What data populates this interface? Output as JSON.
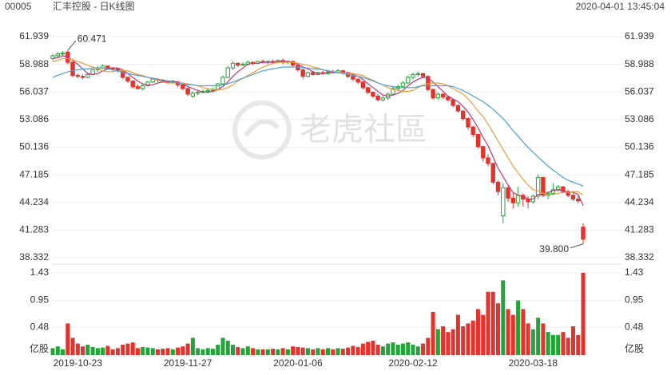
{
  "header": {
    "code": "00005",
    "name": "汇丰控股 - 日K线图",
    "time": "2020-04-01 13:45:04"
  },
  "watermark": "老虎社區",
  "chart_data": {
    "type": "candlestick",
    "categories": [
      null,
      null,
      null,
      null,
      null,
      "2019-10-23",
      null,
      null,
      null,
      null,
      null,
      null,
      null,
      null,
      null,
      null,
      null,
      null,
      null,
      null,
      null,
      null,
      null,
      null,
      null,
      null,
      null,
      "2019-11-27",
      null,
      null,
      null,
      null,
      null,
      null,
      null,
      null,
      null,
      null,
      null,
      null,
      null,
      null,
      null,
      null,
      null,
      null,
      null,
      null,
      null,
      "2020-01-06",
      null,
      null,
      null,
      null,
      null,
      null,
      null,
      null,
      null,
      null,
      null,
      null,
      null,
      null,
      null,
      null,
      null,
      null,
      null,
      null,
      null,
      null,
      "2020-02-12",
      null,
      null,
      null,
      null,
      null,
      null,
      null,
      null,
      null,
      null,
      null,
      null,
      null,
      null,
      null,
      null,
      null,
      null,
      null,
      null,
      null,
      null,
      null,
      "2020-03-18",
      null,
      null,
      null,
      null,
      null,
      null,
      null,
      null,
      null,
      null
    ],
    "open": [
      59.6,
      59.9,
      60.1,
      60.3,
      59.2,
      57.8,
      57.7,
      57.6,
      57.9,
      58.4,
      58.6,
      58.8,
      58.6,
      58.5,
      58.3,
      57.6,
      57.2,
      56.6,
      56.4,
      56.7,
      57.1,
      57.4,
      57.3,
      57.2,
      57.0,
      57.1,
      56.8,
      56.4,
      55.6,
      55.9,
      56.0,
      56.1,
      56.2,
      56.3,
      56.9,
      57.6,
      58.6,
      59.1,
      58.9,
      59.0,
      59.2,
      59.1,
      59.3,
      59.2,
      59.3,
      59.2,
      59.4,
      59.2,
      59.3,
      58.9,
      58.4,
      57.7,
      58.1,
      57.9,
      58.1,
      58.0,
      58.2,
      58.1,
      58.3,
      58.1,
      57.7,
      57.4,
      57.1,
      56.5,
      56.0,
      55.6,
      55.2,
      55.4,
      55.8,
      56.4,
      56.6,
      57.0,
      57.6,
      57.9,
      58.0,
      57.7,
      56.3,
      55.4,
      55.8,
      55.5,
      55.2,
      54.6,
      54.0,
      53.2,
      52.3,
      51.5,
      50.2,
      49.0,
      48.4,
      46.4,
      42.8,
      45.8,
      44.7,
      44.2,
      45.0,
      44.6,
      44.3,
      44.9,
      46.9,
      45.0,
      45.2,
      45.6,
      45.9,
      45.4,
      45.0,
      44.6,
      41.6
    ],
    "high": [
      60.1,
      60.3,
      60.4,
      60.471,
      59.3,
      58.0,
      57.9,
      58.1,
      58.5,
      58.8,
      59.0,
      58.9,
      58.7,
      58.6,
      58.4,
      57.7,
      57.3,
      56.8,
      56.9,
      57.2,
      57.6,
      57.5,
      57.4,
      57.3,
      57.3,
      57.2,
      56.9,
      56.5,
      56.1,
      56.2,
      56.3,
      56.4,
      56.5,
      57.0,
      57.8,
      58.8,
      59.3,
      59.2,
      59.2,
      59.4,
      59.3,
      59.4,
      59.5,
      59.4,
      59.5,
      59.5,
      59.6,
      59.4,
      59.4,
      59.0,
      58.5,
      58.2,
      58.3,
      58.2,
      58.3,
      58.4,
      58.4,
      58.5,
      58.4,
      58.2,
      57.8,
      57.5,
      57.2,
      56.6,
      56.1,
      55.8,
      55.6,
      56.0,
      56.6,
      56.8,
      57.2,
      57.8,
      58.1,
      58.2,
      58.1,
      57.8,
      56.4,
      56.0,
      55.9,
      55.6,
      55.3,
      54.7,
      54.1,
      53.3,
      52.4,
      51.6,
      50.3,
      49.4,
      48.5,
      46.6,
      46.3,
      46.0,
      45.3,
      45.9,
      45.2,
      44.9,
      45.1,
      47.2,
      47.0,
      45.4,
      46.3,
      46.1,
      46.0,
      45.6,
      45.2,
      45.0,
      42.0
    ],
    "low": [
      59.4,
      59.7,
      59.9,
      59.0,
      57.6,
      57.5,
      57.4,
      57.5,
      57.8,
      58.2,
      58.5,
      58.4,
      58.3,
      58.1,
      57.4,
      57.0,
      56.4,
      56.3,
      56.2,
      56.6,
      57.0,
      57.1,
      57.0,
      56.9,
      56.9,
      56.6,
      56.2,
      55.6,
      55.4,
      55.7,
      55.9,
      55.9,
      56.0,
      56.2,
      56.8,
      57.5,
      58.4,
      58.7,
      58.8,
      58.9,
      58.9,
      59.0,
      59.1,
      59.0,
      59.0,
      59.1,
      59.0,
      59.0,
      58.7,
      58.2,
      57.4,
      57.6,
      57.8,
      57.8,
      57.9,
      57.9,
      58.0,
      58.0,
      57.9,
      57.5,
      57.2,
      56.9,
      56.3,
      55.8,
      55.4,
      55.0,
      55.0,
      55.2,
      55.7,
      56.2,
      56.5,
      56.9,
      57.4,
      57.7,
      57.5,
      56.1,
      55.2,
      55.2,
      55.3,
      55.0,
      54.4,
      53.8,
      53.0,
      52.0,
      51.2,
      50.0,
      48.6,
      48.1,
      46.2,
      45.0,
      42.0,
      44.3,
      43.6,
      43.8,
      43.8,
      43.6,
      44.1,
      44.6,
      44.8,
      44.6,
      45.0,
      45.4,
      45.2,
      44.8,
      44.4,
      44.2,
      39.8
    ],
    "close": [
      59.9,
      60.1,
      60.2,
      59.2,
      57.8,
      57.7,
      57.6,
      57.9,
      58.4,
      58.6,
      58.8,
      58.6,
      58.5,
      58.3,
      57.6,
      57.2,
      56.6,
      56.4,
      56.7,
      57.1,
      57.4,
      57.3,
      57.2,
      57.0,
      57.1,
      56.8,
      56.4,
      55.8,
      55.9,
      56.0,
      56.1,
      56.2,
      56.3,
      56.9,
      57.6,
      58.6,
      59.1,
      58.9,
      59.0,
      59.2,
      59.1,
      59.3,
      59.2,
      59.3,
      59.2,
      59.4,
      59.2,
      59.3,
      58.9,
      58.4,
      57.7,
      58.1,
      57.9,
      58.1,
      58.0,
      58.2,
      58.1,
      58.3,
      58.1,
      57.7,
      57.4,
      57.1,
      56.5,
      56.0,
      55.6,
      55.2,
      55.4,
      55.8,
      56.4,
      56.6,
      57.0,
      57.6,
      57.9,
      58.0,
      57.7,
      56.3,
      55.4,
      55.8,
      55.5,
      55.2,
      54.6,
      54.0,
      53.2,
      52.3,
      51.5,
      50.2,
      49.0,
      48.4,
      46.4,
      45.4,
      45.8,
      44.7,
      44.2,
      45.0,
      44.6,
      44.3,
      44.9,
      46.9,
      45.0,
      45.2,
      45.6,
      45.9,
      45.4,
      45.0,
      44.6,
      44.4,
      40.3
    ],
    "up_color": "#23a33a",
    "down_color": "#e6322c",
    "ma_lines": [
      {
        "color": "#c2367a",
        "values": [
          59.6,
          59.7,
          59.9,
          59.8,
          59.4,
          59.0,
          58.5,
          58.0,
          57.9,
          58.0,
          58.3,
          58.5,
          58.6,
          58.6,
          58.4,
          58.0,
          57.6,
          57.2,
          56.9,
          56.8,
          56.8,
          57.0,
          57.1,
          57.2,
          57.2,
          57.1,
          56.9,
          56.6,
          56.4,
          56.2,
          56.0,
          56.0,
          56.1,
          56.3,
          56.6,
          57.1,
          57.7,
          58.2,
          58.6,
          59.0,
          59.1,
          59.1,
          59.2,
          59.2,
          59.2,
          59.3,
          59.3,
          59.3,
          59.2,
          59.0,
          58.7,
          58.5,
          58.2,
          58.0,
          58.0,
          58.1,
          58.1,
          58.1,
          58.1,
          58.1,
          57.9,
          57.7,
          57.4,
          56.9,
          56.5,
          56.1,
          55.7,
          55.6,
          55.7,
          55.9,
          56.2,
          56.7,
          57.1,
          57.4,
          57.6,
          57.5,
          57.1,
          56.6,
          56.1,
          55.6,
          55.3,
          55.0,
          54.5,
          53.9,
          53.1,
          52.2,
          51.2,
          50.3,
          49.1,
          47.9,
          47.0,
          46.1,
          45.3,
          45.0,
          44.9,
          44.6,
          44.6,
          45.1,
          45.1,
          45.3,
          45.5,
          45.6,
          45.4,
          45.4,
          45.3,
          45.1,
          43.9
        ]
      },
      {
        "color": "#f09a3a",
        "values": [
          59.3,
          59.4,
          59.6,
          59.6,
          59.5,
          59.3,
          59.1,
          58.9,
          58.7,
          58.5,
          58.3,
          58.2,
          58.2,
          58.3,
          58.3,
          58.3,
          58.1,
          57.9,
          57.8,
          57.6,
          57.4,
          57.3,
          57.1,
          57.0,
          57.0,
          57.0,
          57.0,
          56.9,
          56.8,
          56.7,
          56.5,
          56.4,
          56.3,
          56.3,
          56.3,
          56.5,
          56.8,
          57.2,
          57.5,
          57.8,
          58.1,
          58.4,
          58.7,
          58.9,
          59.1,
          59.2,
          59.2,
          59.2,
          59.2,
          59.1,
          59.0,
          58.9,
          58.7,
          58.6,
          58.4,
          58.3,
          58.2,
          58.1,
          58.1,
          58.0,
          58.0,
          57.9,
          57.8,
          57.5,
          57.3,
          57.0,
          56.8,
          56.5,
          56.3,
          56.2,
          56.1,
          56.1,
          56.2,
          56.5,
          56.8,
          56.9,
          57.0,
          57.0,
          56.9,
          56.7,
          56.4,
          56.1,
          55.8,
          55.3,
          54.7,
          54.0,
          53.4,
          52.6,
          51.7,
          50.8,
          49.9,
          49.0,
          48.1,
          47.4,
          46.7,
          46.1,
          45.6,
          45.5,
          45.2,
          45.1,
          45.1,
          45.2,
          45.3,
          45.3,
          45.4,
          45.4,
          45.0
        ]
      },
      {
        "color": "#4a9fd8",
        "values": [
          57.6,
          57.8,
          58.0,
          58.2,
          58.3,
          58.4,
          58.5,
          58.5,
          58.6,
          58.6,
          58.6,
          58.5,
          58.4,
          58.3,
          58.1,
          58.0,
          57.9,
          57.8,
          57.7,
          57.6,
          57.5,
          57.4,
          57.3,
          57.2,
          57.1,
          57.0,
          56.9,
          56.8,
          56.8,
          56.7,
          56.7,
          56.7,
          56.7,
          56.7,
          56.8,
          56.9,
          57.1,
          57.3,
          57.5,
          57.7,
          57.9,
          58.1,
          58.3,
          58.4,
          58.5,
          58.6,
          58.7,
          58.7,
          58.7,
          58.7,
          58.6,
          58.6,
          58.5,
          58.5,
          58.4,
          58.3,
          58.2,
          58.1,
          58.0,
          57.9,
          57.8,
          57.7,
          57.6,
          57.4,
          57.2,
          57.0,
          56.8,
          56.7,
          56.6,
          56.5,
          56.5,
          56.5,
          56.5,
          56.6,
          56.7,
          56.7,
          56.7,
          56.7,
          56.7,
          56.7,
          56.6,
          56.4,
          56.2,
          55.9,
          55.6,
          55.3,
          55.0,
          54.6,
          54.2,
          53.7,
          53.2,
          52.6,
          51.9,
          51.3,
          50.7,
          50.1,
          49.6,
          49.1,
          48.6,
          48.1,
          47.7,
          47.3,
          46.9,
          46.6,
          46.4,
          46.2,
          46.0
        ]
      }
    ],
    "ylim": [
      38.332,
      61.939
    ],
    "yticks": [
      38.332,
      41.283,
      44.234,
      47.185,
      50.136,
      53.086,
      56.037,
      58.988,
      61.939
    ],
    "grid": true,
    "annotations": [
      "60.471",
      "39.800"
    ],
    "volume": {
      "unit": "亿股",
      "ylim": [
        0,
        1.43
      ],
      "yticks": [
        0.48,
        0.95,
        1.43
      ],
      "values": [
        0.12,
        0.15,
        0.1,
        0.55,
        0.3,
        0.2,
        0.15,
        0.18,
        0.14,
        0.12,
        0.13,
        0.16,
        0.1,
        0.12,
        0.18,
        0.2,
        0.22,
        0.12,
        0.14,
        0.13,
        0.12,
        0.1,
        0.11,
        0.12,
        0.1,
        0.13,
        0.15,
        0.2,
        0.3,
        0.12,
        0.1,
        0.12,
        0.11,
        0.18,
        0.3,
        0.25,
        0.18,
        0.14,
        0.12,
        0.15,
        0.12,
        0.1,
        0.1,
        0.1,
        0.11,
        0.1,
        0.12,
        0.1,
        0.15,
        0.14,
        0.13,
        0.12,
        0.1,
        0.12,
        0.1,
        0.12,
        0.1,
        0.12,
        0.11,
        0.13,
        0.16,
        0.14,
        0.2,
        0.23,
        0.25,
        0.18,
        0.15,
        0.2,
        0.22,
        0.18,
        0.2,
        0.22,
        0.18,
        0.15,
        0.2,
        0.3,
        0.75,
        0.45,
        0.5,
        0.4,
        0.45,
        0.7,
        0.5,
        0.55,
        0.6,
        0.8,
        0.7,
        1.1,
        1.1,
        0.9,
        1.3,
        0.8,
        0.7,
        0.95,
        0.8,
        0.55,
        0.45,
        0.65,
        0.55,
        0.4,
        0.35,
        0.35,
        0.4,
        0.3,
        0.5,
        0.35,
        1.43
      ]
    }
  }
}
